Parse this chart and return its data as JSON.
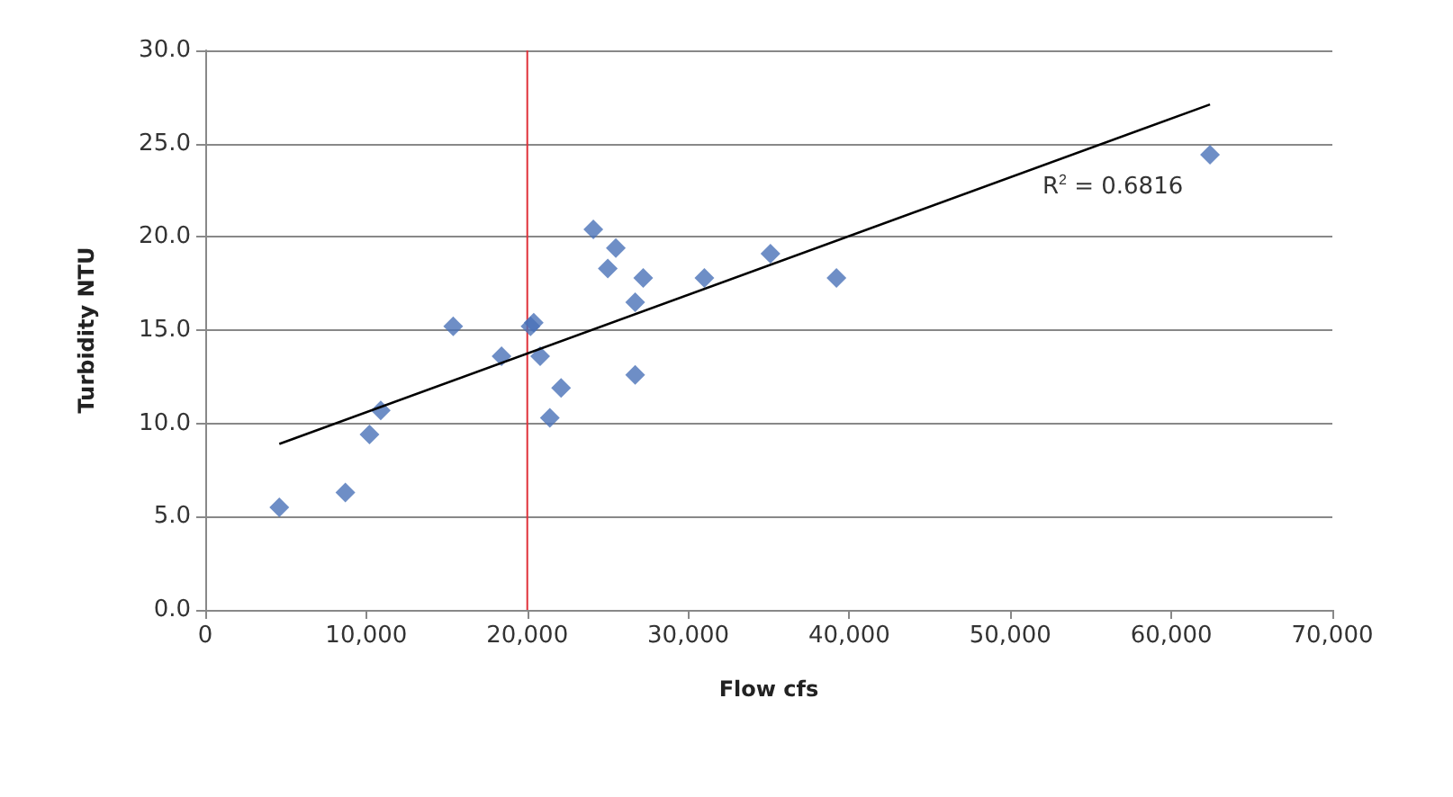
{
  "chart_data": {
    "type": "scatter",
    "xlabel": "Flow cfs",
    "ylabel": "Turbidity NTU",
    "xlim": [
      0,
      70000
    ],
    "xticks": [
      {
        "value": 0,
        "label": "0"
      },
      {
        "value": 10000,
        "label": "10,000"
      },
      {
        "value": 20000,
        "label": "20,000"
      },
      {
        "value": 30000,
        "label": "30,000"
      },
      {
        "value": 40000,
        "label": "40,000"
      },
      {
        "value": 50000,
        "label": "50,000"
      },
      {
        "value": 60000,
        "label": "60,000"
      },
      {
        "value": 70000,
        "label": "70,000"
      }
    ],
    "ylim": [
      0,
      30
    ],
    "yticks": [
      {
        "value": 0,
        "label": "0.0"
      },
      {
        "value": 5,
        "label": "5.0"
      },
      {
        "value": 10,
        "label": "10.0"
      },
      {
        "value": 15,
        "label": "15.0"
      },
      {
        "value": 20,
        "label": "20.0"
      },
      {
        "value": 25,
        "label": "25.0"
      },
      {
        "value": 30,
        "label": "30.0"
      }
    ],
    "grid": "y",
    "series": [
      {
        "marker": "diamond",
        "color": "#4a72b8",
        "x": [
          4600,
          8700,
          10200,
          10900,
          15400,
          18400,
          20200,
          20400,
          20800,
          21400,
          22100,
          24100,
          25000,
          25500,
          26700,
          26700,
          27200,
          31000,
          35100,
          39200,
          62400
        ],
        "values": [
          5.5,
          6.3,
          9.4,
          10.7,
          15.2,
          13.6,
          15.2,
          15.4,
          13.6,
          10.3,
          11.9,
          20.4,
          18.3,
          19.4,
          16.5,
          12.6,
          17.8,
          17.8,
          19.1,
          17.8,
          24.4
        ]
      },
      {
        "type": "line",
        "marker": "none",
        "color": "#000000",
        "x": [
          4600,
          62400
        ],
        "values": [
          8.9,
          27.1
        ]
      }
    ],
    "ref_lines": [
      {
        "axis": "x",
        "value": 20000,
        "color": "#e0303a"
      }
    ],
    "annotations": [
      "R$^{2}$ = 0.6816"
    ]
  }
}
